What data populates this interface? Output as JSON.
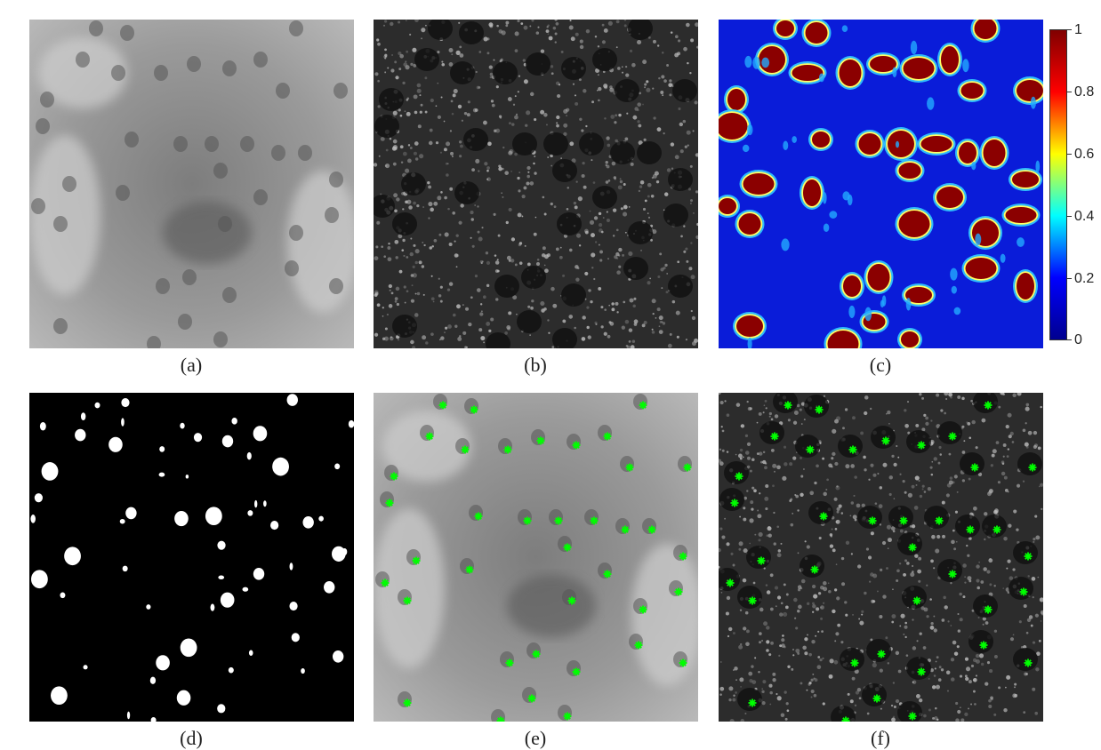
{
  "captions": {
    "a": "(a)",
    "b": "(b)",
    "c": "(c)",
    "d": "(d)",
    "e": "(e)",
    "f": "(f)"
  },
  "colorbar": {
    "ticks": [
      "1",
      "0.8",
      "0.6",
      "0.4",
      "0.2",
      "0"
    ],
    "colormap": [
      "#800000",
      "#ff0000",
      "#ffff00",
      "#00ffff",
      "#0000ff",
      "#00008f"
    ]
  },
  "colors": {
    "marker": "#00ff00",
    "heatmap_background": "#0a1cd9",
    "blob_core": "#8b0000"
  }
}
